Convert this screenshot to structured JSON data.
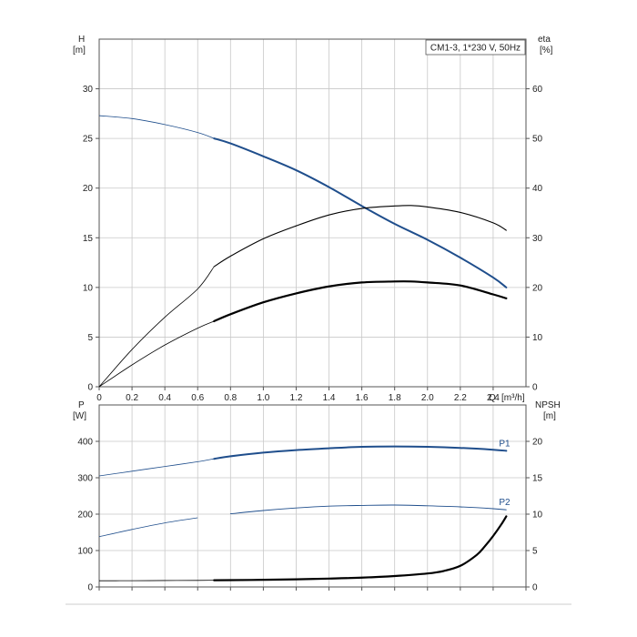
{
  "chart_data": [
    {
      "type": "line",
      "panel": "upper",
      "title": "CM1-3, 1*230 V, 50Hz",
      "xlabel": "Q [m³/h]",
      "x_unit_prefix": "Q",
      "x_unit": "[m³/h]",
      "xlim": [
        0,
        2.6
      ],
      "xticks": [
        "0",
        "0.2",
        "0.4",
        "0.6",
        "0.8",
        "1.0",
        "1.2",
        "1.4",
        "1.6",
        "1.8",
        "2.0",
        "2.2",
        "2.4"
      ],
      "left_axis": {
        "label": "H",
        "unit": "[m]",
        "ylim": [
          0,
          35
        ],
        "ticks": [
          "0",
          "5",
          "10",
          "15",
          "20",
          "25",
          "30"
        ]
      },
      "right_axis": {
        "label": "eta",
        "unit": "[%]",
        "ylim": [
          0,
          70
        ],
        "ticks": [
          "0",
          "10",
          "20",
          "30",
          "40",
          "50",
          "60"
        ]
      },
      "grid": true,
      "series": [
        {
          "axis": "left",
          "color": "#1f4e8c",
          "x": [
            0,
            0.2,
            0.4,
            0.6,
            0.7,
            0.8,
            1.0,
            1.2,
            1.4,
            1.6,
            1.8,
            2.0,
            2.2,
            2.4,
            2.48
          ],
          "y": [
            27.3,
            27.0,
            26.4,
            25.6,
            25.0,
            24.5,
            23.2,
            21.8,
            20.1,
            18.2,
            16.4,
            14.8,
            13.0,
            11.0,
            10.0
          ]
        },
        {
          "axis": "right",
          "color": "#000000",
          "x": [
            0,
            0.2,
            0.4,
            0.6,
            0.7,
            0.8,
            1.0,
            1.2,
            1.4,
            1.6,
            1.8,
            1.9,
            2.0,
            2.2,
            2.4,
            2.48
          ],
          "y": [
            0,
            7.5,
            14.0,
            19.7,
            24.2,
            26.3,
            29.8,
            32.4,
            34.6,
            35.9,
            36.4,
            36.5,
            36.2,
            35.1,
            33.0,
            31.5
          ]
        },
        {
          "axis": "left",
          "color": "#000000",
          "x": [
            0,
            0.2,
            0.4,
            0.6,
            0.7,
            0.8,
            1.0,
            1.2,
            1.4,
            1.6,
            1.8,
            1.9,
            2.0,
            2.2,
            2.4,
            2.48
          ],
          "y": [
            0,
            2.2,
            4.2,
            5.9,
            6.6,
            7.3,
            8.5,
            9.4,
            10.1,
            10.5,
            10.6,
            10.6,
            10.5,
            10.2,
            9.3,
            8.9
          ]
        }
      ]
    },
    {
      "type": "line",
      "panel": "lower",
      "xlim": [
        0,
        2.6
      ],
      "left_axis": {
        "label": "P",
        "unit": "[W]",
        "ylim": [
          0,
          500
        ],
        "ticks": [
          "0",
          "100",
          "200",
          "300",
          "400"
        ]
      },
      "right_axis": {
        "label": "NPSH",
        "unit": "[m]",
        "ylim": [
          0,
          25
        ],
        "ticks": [
          "0",
          "5",
          "10",
          "15",
          "20"
        ]
      },
      "grid": true,
      "series": [
        {
          "name": "P1",
          "axis": "left",
          "color": "#1f4e8c",
          "x": [
            0,
            0.2,
            0.4,
            0.6,
            0.7,
            0.8,
            1.0,
            1.2,
            1.4,
            1.6,
            1.8,
            2.0,
            2.2,
            2.4,
            2.48
          ],
          "y": [
            305,
            318,
            331,
            344,
            352,
            359,
            369,
            376,
            381,
            385,
            386,
            385,
            382,
            377,
            374
          ]
        },
        {
          "name": "P2",
          "axis": "left",
          "color": "#1f4e8c",
          "x": [
            0,
            0.2,
            0.4,
            0.6,
            0.8,
            1.0,
            1.2,
            1.4,
            1.6,
            1.8,
            2.0,
            2.2,
            2.4,
            2.48
          ],
          "y": [
            138,
            158,
            176,
            190,
            201,
            210,
            217,
            222,
            224,
            225,
            223,
            220,
            215,
            212
          ]
        },
        {
          "axis": "right",
          "color": "#000000",
          "x": [
            0,
            0.2,
            0.4,
            0.6,
            0.7,
            0.8,
            1.0,
            1.2,
            1.4,
            1.6,
            1.8,
            2.0,
            2.1,
            2.2,
            2.3,
            2.35,
            2.4,
            2.45,
            2.48
          ],
          "y": [
            0.85,
            0.86,
            0.88,
            0.9,
            0.92,
            0.94,
            0.98,
            1.05,
            1.15,
            1.28,
            1.5,
            1.85,
            2.2,
            2.9,
            4.4,
            5.6,
            7.0,
            8.6,
            9.7
          ]
        }
      ]
    }
  ]
}
